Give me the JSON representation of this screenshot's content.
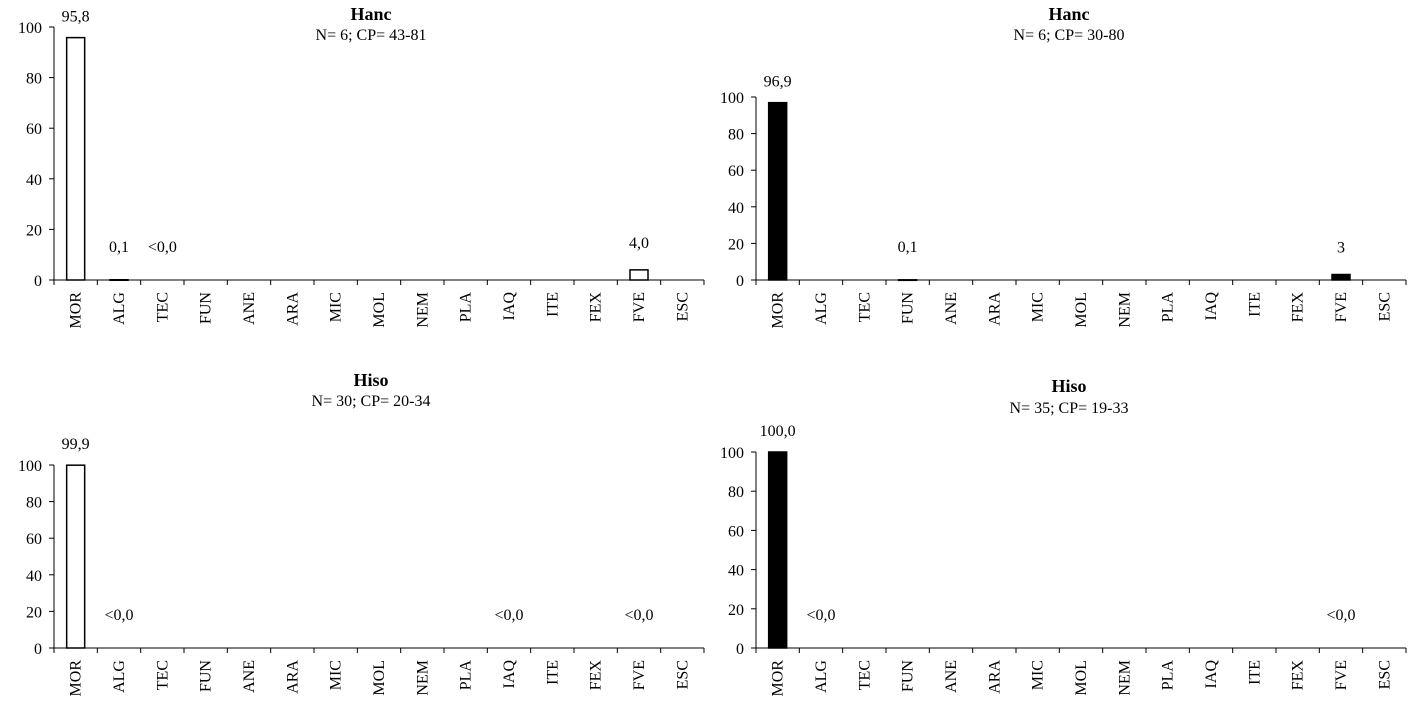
{
  "chart_data": [
    {
      "type": "bar",
      "title": "Hanc",
      "subtitle": "N= 6; CP= 43-81",
      "categories": [
        "MOR",
        "ALG",
        "TEC",
        "FUN",
        "ANE",
        "ARA",
        "MIC",
        "MOL",
        "NEM",
        "PLA",
        "IAQ",
        "ITE",
        "FEX",
        "FVE",
        "ESC"
      ],
      "values": [
        95.8,
        0.1,
        0,
        0,
        0,
        0,
        0,
        0,
        0,
        0,
        0,
        0,
        0,
        4.0,
        0
      ],
      "data_labels": [
        "95,8",
        "0,1",
        "<0,0",
        "",
        "",
        "",
        "",
        "",
        "",
        "",
        "",
        "",
        "",
        "4,0",
        ""
      ],
      "yticks": [
        "0",
        "20",
        "40",
        "60",
        "80",
        "100"
      ],
      "ylim": [
        0,
        100
      ],
      "bar_fill": "#ffffff",
      "bar_stroke": "#000000",
      "grid": false
    },
    {
      "type": "bar",
      "title": "Hanc",
      "subtitle": "N= 6; CP= 30-80",
      "categories": [
        "MOR",
        "ALG",
        "TEC",
        "FUN",
        "ANE",
        "ARA",
        "MIC",
        "MOL",
        "NEM",
        "PLA",
        "IAQ",
        "ITE",
        "FEX",
        "FVE",
        "ESC"
      ],
      "values": [
        96.9,
        0,
        0,
        0.1,
        0,
        0,
        0,
        0,
        0,
        0,
        0,
        0,
        0,
        3,
        0
      ],
      "data_labels": [
        "96,9",
        "",
        "",
        "0,1",
        "",
        "",
        "",
        "",
        "",
        "",
        "",
        "",
        "",
        "3",
        ""
      ],
      "yticks": [
        "0",
        "20",
        "40",
        "60",
        "80",
        "100"
      ],
      "ylim": [
        0,
        100
      ],
      "bar_fill": "#000000",
      "bar_stroke": "#000000",
      "grid": false
    },
    {
      "type": "bar",
      "title": "Hiso",
      "subtitle": "N= 30; CP= 20-34",
      "categories": [
        "MOR",
        "ALG",
        "TEC",
        "FUN",
        "ANE",
        "ARA",
        "MIC",
        "MOL",
        "NEM",
        "PLA",
        "IAQ",
        "ITE",
        "FEX",
        "FVE",
        "ESC"
      ],
      "values": [
        99.9,
        0,
        0,
        0,
        0,
        0,
        0,
        0,
        0,
        0,
        0,
        0,
        0,
        0,
        0
      ],
      "data_labels": [
        "99,9",
        "<0,0",
        "",
        "",
        "",
        "",
        "",
        "",
        "",
        "",
        "<0,0",
        "",
        "",
        "<0,0",
        ""
      ],
      "yticks": [
        "0",
        "20",
        "40",
        "60",
        "80",
        "100"
      ],
      "ylim": [
        0,
        100
      ],
      "bar_fill": "#ffffff",
      "bar_stroke": "#000000",
      "grid": false
    },
    {
      "type": "bar",
      "title": "Hiso",
      "subtitle": "N= 35; CP= 19-33",
      "categories": [
        "MOR",
        "ALG",
        "TEC",
        "FUN",
        "ANE",
        "ARA",
        "MIC",
        "MOL",
        "NEM",
        "PLA",
        "IAQ",
        "ITE",
        "FEX",
        "FVE",
        "ESC"
      ],
      "values": [
        100.0,
        0,
        0,
        0,
        0,
        0,
        0,
        0,
        0,
        0,
        0,
        0,
        0,
        0,
        0
      ],
      "data_labels": [
        "100,0",
        "<0,0",
        "",
        "",
        "",
        "",
        "",
        "",
        "",
        "",
        "",
        "",
        "",
        "<0,0",
        ""
      ],
      "yticks": [
        "0",
        "20",
        "40",
        "60",
        "80",
        "100"
      ],
      "ylim": [
        0,
        100
      ],
      "bar_fill": "#000000",
      "bar_stroke": "#000000",
      "grid": false
    }
  ]
}
